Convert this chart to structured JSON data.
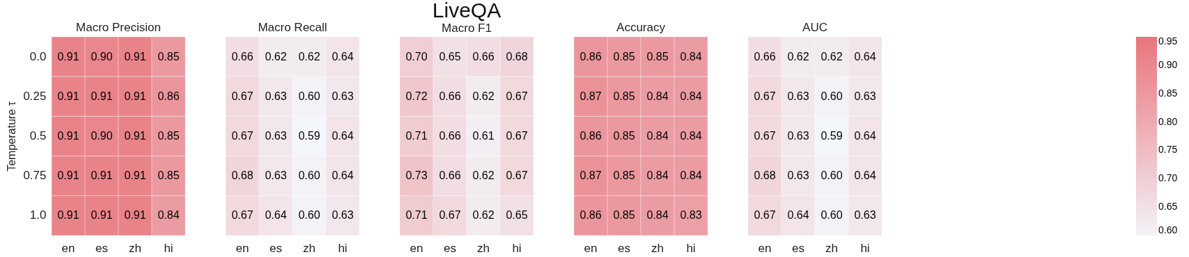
{
  "chart_data": [
    {
      "type": "heatmap",
      "subtitle": "Macro Precision",
      "data_labels": true,
      "ylabel": "Temperature τ",
      "categories": [
        "en",
        "es",
        "zh",
        "hi"
      ],
      "y_categories": [
        "0.0",
        "0.25",
        "0.5",
        "0.75",
        "1.0"
      ],
      "cells": [
        [
          0.91,
          0.9,
          0.91,
          0.85
        ],
        [
          0.91,
          0.91,
          0.91,
          0.86
        ],
        [
          0.91,
          0.9,
          0.91,
          0.85
        ],
        [
          0.91,
          0.91,
          0.91,
          0.85
        ],
        [
          0.91,
          0.91,
          0.91,
          0.84
        ]
      ],
      "cell_labels": [
        [
          "0.91",
          "0.90",
          "0.91",
          "0.85"
        ],
        [
          "0.91",
          "0.91",
          "0.91",
          "0.86"
        ],
        [
          "0.91",
          "0.90",
          "0.91",
          "0.85"
        ],
        [
          "0.91",
          "0.91",
          "0.91",
          "0.85"
        ],
        [
          "0.91",
          "0.91",
          "0.91",
          "0.84"
        ]
      ]
    },
    {
      "type": "heatmap",
      "subtitle": "Macro Recall",
      "data_labels": true,
      "categories": [
        "en",
        "es",
        "zh",
        "hi"
      ],
      "y_categories": [
        "0.0",
        "0.25",
        "0.5",
        "0.75",
        "1.0"
      ],
      "tick_labels": "x",
      "cells": [
        [
          0.66,
          0.62,
          0.62,
          0.64
        ],
        [
          0.67,
          0.63,
          0.6,
          0.63
        ],
        [
          0.67,
          0.63,
          0.59,
          0.64
        ],
        [
          0.68,
          0.63,
          0.6,
          0.64
        ],
        [
          0.67,
          0.64,
          0.6,
          0.63
        ]
      ],
      "cell_labels": [
        [
          "0.66",
          "0.62",
          "0.62",
          "0.64"
        ],
        [
          "0.67",
          "0.63",
          "0.60",
          "0.63"
        ],
        [
          "0.67",
          "0.63",
          "0.59",
          "0.64"
        ],
        [
          "0.68",
          "0.63",
          "0.60",
          "0.64"
        ],
        [
          "0.67",
          "0.64",
          "0.60",
          "0.63"
        ]
      ]
    },
    {
      "type": "heatmap",
      "title": "LiveQA",
      "subtitle": "Macro F1",
      "data_labels": true,
      "categories": [
        "en",
        "es",
        "zh",
        "hi"
      ],
      "y_categories": [
        "0.0",
        "0.25",
        "0.5",
        "0.75",
        "1.0"
      ],
      "tick_labels": "x",
      "cells": [
        [
          0.7,
          0.65,
          0.66,
          0.68
        ],
        [
          0.72,
          0.66,
          0.62,
          0.67
        ],
        [
          0.71,
          0.66,
          0.61,
          0.67
        ],
        [
          0.73,
          0.66,
          0.62,
          0.67
        ],
        [
          0.71,
          0.67,
          0.62,
          0.65
        ]
      ],
      "cell_labels": [
        [
          "0.70",
          "0.65",
          "0.66",
          "0.68"
        ],
        [
          "0.72",
          "0.66",
          "0.62",
          "0.67"
        ],
        [
          "0.71",
          "0.66",
          "0.61",
          "0.67"
        ],
        [
          "0.73",
          "0.66",
          "0.62",
          "0.67"
        ],
        [
          "0.71",
          "0.67",
          "0.62",
          "0.65"
        ]
      ]
    },
    {
      "type": "heatmap",
      "subtitle": "Accuracy",
      "data_labels": true,
      "categories": [
        "en",
        "es",
        "zh",
        "hi"
      ],
      "y_categories": [
        "0.0",
        "0.25",
        "0.5",
        "0.75",
        "1.0"
      ],
      "tick_labels": "x",
      "cells": [
        [
          0.86,
          0.85,
          0.85,
          0.84
        ],
        [
          0.87,
          0.85,
          0.84,
          0.84
        ],
        [
          0.86,
          0.85,
          0.84,
          0.84
        ],
        [
          0.87,
          0.85,
          0.84,
          0.84
        ],
        [
          0.86,
          0.85,
          0.84,
          0.83
        ]
      ],
      "cell_labels": [
        [
          "0.86",
          "0.85",
          "0.85",
          "0.84"
        ],
        [
          "0.87",
          "0.85",
          "0.84",
          "0.84"
        ],
        [
          "0.86",
          "0.85",
          "0.84",
          "0.84"
        ],
        [
          "0.87",
          "0.85",
          "0.84",
          "0.84"
        ],
        [
          "0.86",
          "0.85",
          "0.84",
          "0.83"
        ]
      ]
    },
    {
      "type": "heatmap",
      "subtitle": "AUC",
      "data_labels": true,
      "categories": [
        "en",
        "es",
        "zh",
        "hi"
      ],
      "y_categories": [
        "0.0",
        "0.25",
        "0.5",
        "0.75",
        "1.0"
      ],
      "tick_labels": "x",
      "cells": [
        [
          0.66,
          0.62,
          0.62,
          0.64
        ],
        [
          0.67,
          0.63,
          0.6,
          0.63
        ],
        [
          0.67,
          0.63,
          0.59,
          0.64
        ],
        [
          0.68,
          0.63,
          0.6,
          0.64
        ],
        [
          0.67,
          0.64,
          0.6,
          0.63
        ]
      ],
      "cell_labels": [
        [
          "0.66",
          "0.62",
          "0.62",
          "0.64"
        ],
        [
          "0.67",
          "0.63",
          "0.60",
          "0.63"
        ],
        [
          "0.67",
          "0.63",
          "0.59",
          "0.64"
        ],
        [
          "0.68",
          "0.63",
          "0.60",
          "0.64"
        ],
        [
          "0.67",
          "0.64",
          "0.60",
          "0.63"
        ]
      ],
      "clim": [
        0.6,
        0.95
      ],
      "cticks": [
        {
          "value": 0.6,
          "label": "0.60"
        },
        {
          "value": 0.65,
          "label": "0.65"
        },
        {
          "value": 0.7,
          "label": "0.70"
        },
        {
          "value": 0.75,
          "label": "0.75"
        },
        {
          "value": 0.8,
          "label": "0.80"
        },
        {
          "value": 0.85,
          "label": "0.85"
        },
        {
          "value": 0.9,
          "label": "0.90"
        },
        {
          "value": 0.95,
          "label": "0.95"
        }
      ]
    }
  ]
}
